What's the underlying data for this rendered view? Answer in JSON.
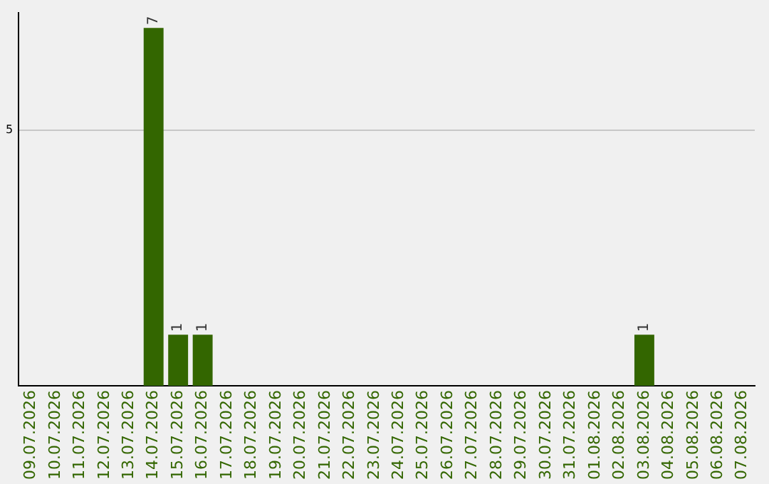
{
  "chart_data": {
    "type": "bar",
    "categories": [
      "09.07.2026",
      "10.07.2026",
      "11.07.2026",
      "12.07.2026",
      "13.07.2026",
      "14.07.2026",
      "15.07.2026",
      "16.07.2026",
      "17.07.2026",
      "18.07.2026",
      "19.07.2026",
      "20.07.2026",
      "21.07.2026",
      "22.07.2026",
      "23.07.2026",
      "24.07.2026",
      "25.07.2026",
      "26.07.2026",
      "27.07.2026",
      "28.07.2026",
      "29.07.2026",
      "30.07.2026",
      "31.07.2026",
      "01.08.2026",
      "02.08.2026",
      "03.08.2026",
      "04.08.2026",
      "05.08.2026",
      "06.08.2026",
      "07.08.2026"
    ],
    "values": [
      0,
      0,
      0,
      0,
      0,
      7,
      1,
      1,
      0,
      0,
      0,
      0,
      0,
      0,
      0,
      0,
      0,
      0,
      0,
      0,
      0,
      0,
      0,
      0,
      0,
      1,
      0,
      0,
      0,
      0
    ],
    "value_labels": [
      null,
      null,
      null,
      null,
      null,
      "7",
      "1",
      "1",
      null,
      null,
      null,
      null,
      null,
      null,
      null,
      null,
      null,
      null,
      null,
      null,
      null,
      null,
      null,
      null,
      null,
      "1",
      null,
      null,
      null,
      null
    ],
    "color": "#336600",
    "ylim": [
      0,
      7.3
    ],
    "yticks": [
      5
    ],
    "grid": "y",
    "legend": false
  }
}
